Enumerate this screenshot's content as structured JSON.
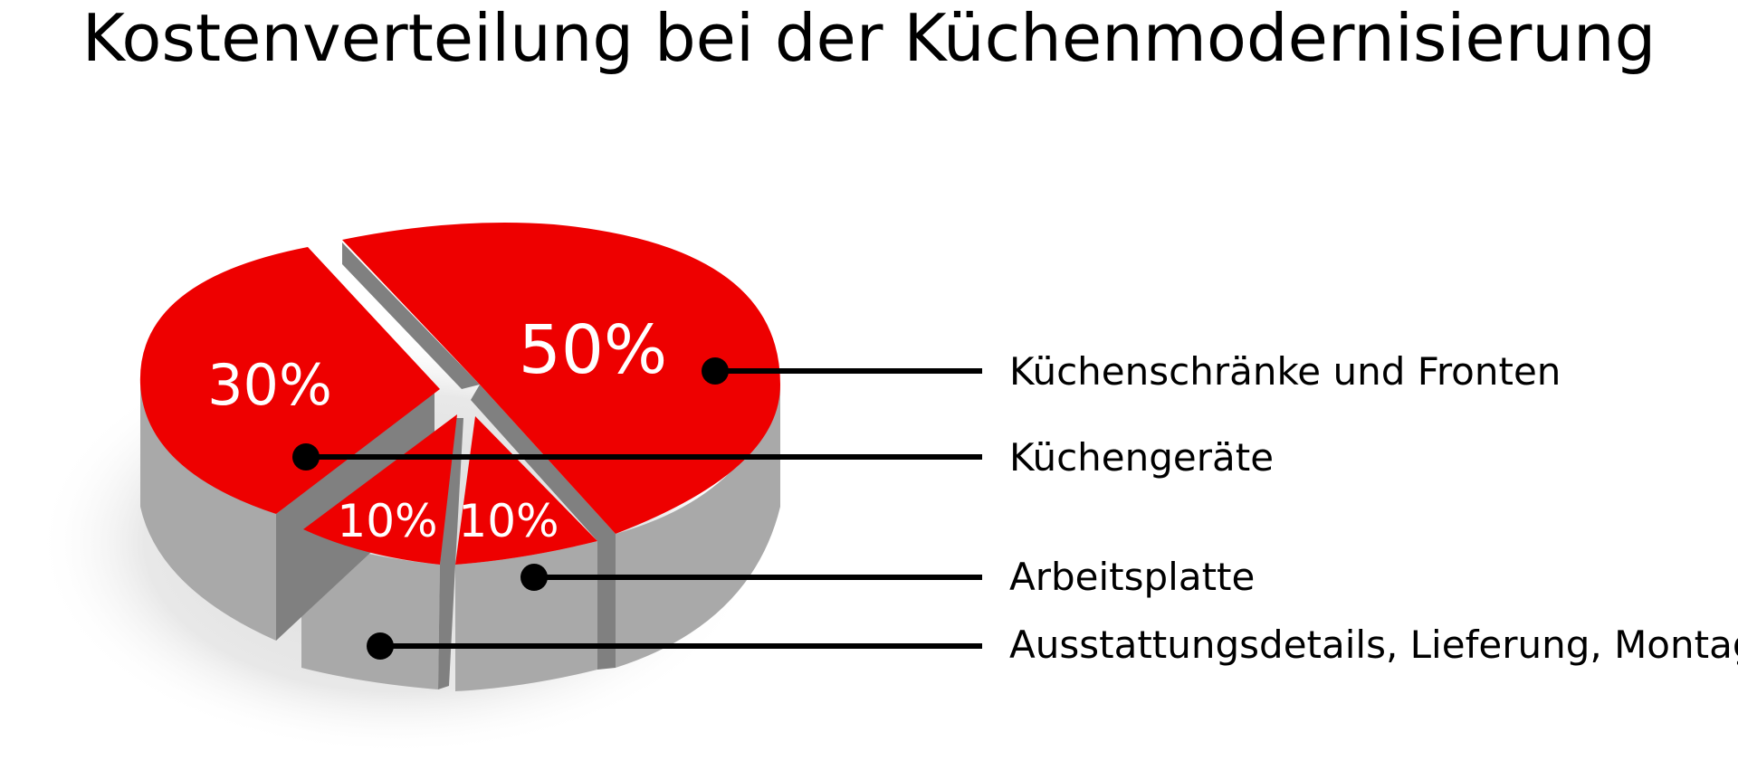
{
  "chart_data": {
    "type": "pie",
    "title": "Kostenverteilung bei der Küchenmodernisierung",
    "slices": [
      {
        "label": "Küchenschränke und Fronten",
        "value": 50,
        "display": "50%"
      },
      {
        "label": "Küchengeräte",
        "value": 30,
        "display": "30%"
      },
      {
        "label": "Arbeitsplatte",
        "value": 10,
        "display": "10%"
      },
      {
        "label": "Ausstattungsdetails, Lieferung, Montage",
        "value": 10,
        "display": "10%"
      }
    ],
    "legend_placement": "right",
    "colors": {
      "top": "#ee0000",
      "side": "#a9a9a9",
      "side_dark": "#808080",
      "shadow": "#e6e6e6",
      "leader": "#000000"
    }
  }
}
